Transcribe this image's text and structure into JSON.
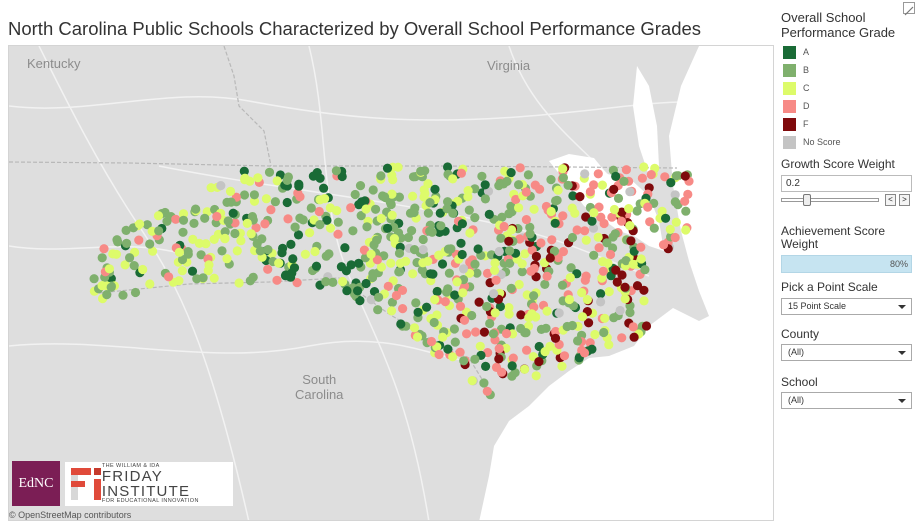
{
  "title": "North Carolina Public Schools Characterized by Overall School Performance Grades",
  "map": {
    "labels": {
      "kentucky": "Kentucky",
      "virginia": "Virginia",
      "south_carolina_1": "South",
      "south_carolina_2": "Carolina"
    },
    "attribution": "© OpenStreetMap contributors",
    "colors": {
      "land": "#dedede",
      "water": "#ffffff",
      "roads": "#ffffff",
      "border": "#bdbdbd"
    }
  },
  "logos": {
    "ednc": "EdNC",
    "friday_small": "THE WILLIAM & IDA",
    "friday_big": "FRIDAY INSTITUTE",
    "friday_sub": "FOR EDUCATIONAL INNOVATION"
  },
  "legend": {
    "title": "Overall School Performance Grade",
    "items": [
      {
        "label": "A",
        "color": "#1a6b36"
      },
      {
        "label": "B",
        "color": "#7fb06d"
      },
      {
        "label": "C",
        "color": "#ddfb6a"
      },
      {
        "label": "D",
        "color": "#f78a86"
      },
      {
        "label": "F",
        "color": "#7f0a0c"
      },
      {
        "label": "No Score",
        "color": "#c4c4c4"
      }
    ]
  },
  "controls": {
    "growth_label": "Growth Score Weight",
    "growth_value": "0.2",
    "growth_fraction": 0.2,
    "step_left": "<",
    "step_right": ">",
    "achievement_label": "Achievement Score Weight",
    "achievement_value": "80%",
    "point_scale_label": "Pick a Point Scale",
    "point_scale_value": "15 Point Scale",
    "county_label": "County",
    "county_value": "(All)",
    "school_label": "School",
    "school_value": "(All)"
  }
}
